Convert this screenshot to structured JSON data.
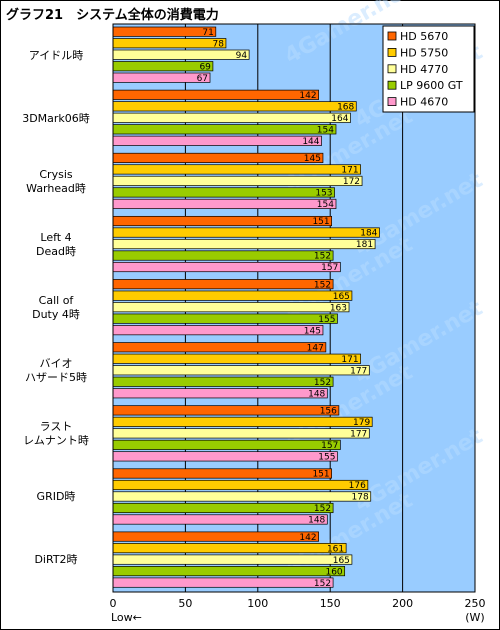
{
  "title": "グラフ21　システム全体の消費電力",
  "chart_data": {
    "type": "bar",
    "orientation": "horizontal",
    "title": "グラフ21　システム全体の消費電力",
    "categories": [
      "アイドル時",
      "3DMark06時",
      "Crysis\nWarhead時",
      "Left 4\nDead時",
      "Call of\nDuty 4時",
      "バイオ\nハザード5時",
      "ラスト\nレムナント時",
      "GRID時",
      "DiRT2時"
    ],
    "series": [
      {
        "name": "HD 5670",
        "color": "#ff6600",
        "values": [
          71,
          142,
          145,
          151,
          152,
          147,
          156,
          151,
          142
        ]
      },
      {
        "name": "HD 5750",
        "color": "#ffcc00",
        "values": [
          78,
          168,
          171,
          184,
          165,
          171,
          179,
          176,
          161
        ]
      },
      {
        "name": "HD 4770",
        "color": "#ffff99",
        "values": [
          94,
          164,
          172,
          181,
          163,
          177,
          177,
          178,
          165
        ]
      },
      {
        "name": "LP 9600 GT",
        "color": "#99cc00",
        "values": [
          69,
          154,
          153,
          152,
          155,
          152,
          157,
          152,
          160
        ]
      },
      {
        "name": "HD 4670",
        "color": "#ff99cc",
        "values": [
          67,
          144,
          154,
          157,
          145,
          148,
          155,
          148,
          152
        ]
      }
    ],
    "xlim": [
      0,
      250
    ],
    "ticks": [
      0,
      50,
      100,
      150,
      200,
      250
    ],
    "tick_labels": [
      "0",
      "50",
      "100",
      "150",
      "200",
      "250"
    ],
    "unit": "(W)",
    "direction_note": "Low←",
    "grid": true,
    "legend_position": "top-right",
    "plot_bg": "#99ccff"
  }
}
